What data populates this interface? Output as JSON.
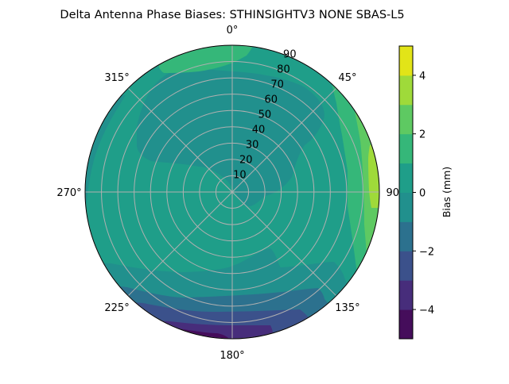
{
  "chart_data": {
    "type": "contour",
    "projection": "polar",
    "title": "Delta Antenna Phase Biases: STHINSIGHTV3    NONE SBAS-L5",
    "theta_zero": "top",
    "theta_direction": "clockwise",
    "theta_ticks": [
      0,
      45,
      90,
      135,
      180,
      225,
      270,
      315
    ],
    "theta_tick_labels": [
      "0°",
      "45°",
      "90°",
      "135°",
      "180°",
      "225°",
      "270°",
      "315°"
    ],
    "r_range": [
      0,
      90
    ],
    "r_ticks": [
      10,
      20,
      30,
      40,
      50,
      60,
      70,
      80,
      90
    ],
    "r_tick_labels": [
      "10",
      "20",
      "30",
      "40",
      "50",
      "60",
      "70",
      "80",
      "90"
    ],
    "grid": true,
    "colormap": "viridis",
    "levels": [
      -5,
      -4,
      -3,
      -2,
      -1,
      0,
      1,
      2,
      3,
      4,
      5
    ],
    "level_colors": [
      "#450d5b",
      "#472d7b",
      "#3b518b",
      "#2c718e",
      "#21908d",
      "#1f9e89",
      "#35b779",
      "#5ec962",
      "#9fda3a",
      "#e2e418"
    ],
    "colorbar": {
      "label": "Bias (mm)",
      "ticks": [
        -4,
        -2,
        0,
        2,
        4
      ],
      "tick_labels": [
        "−4",
        "−2",
        "0",
        "2",
        "4"
      ],
      "range": [
        -5,
        5
      ]
    },
    "regions_summary": [
      {
        "level_band": [
          -1,
          0
        ],
        "where": "north-west to north-east, zenith 10–80"
      },
      {
        "level_band": [
          1,
          4
        ],
        "where": "east edge, zenith 70–90"
      },
      {
        "level_band": [
          -5,
          -1
        ],
        "where": "south edge, zenith 60–90"
      },
      {
        "level_band": [
          1,
          2
        ],
        "where": "north-north-west edge"
      }
    ]
  }
}
